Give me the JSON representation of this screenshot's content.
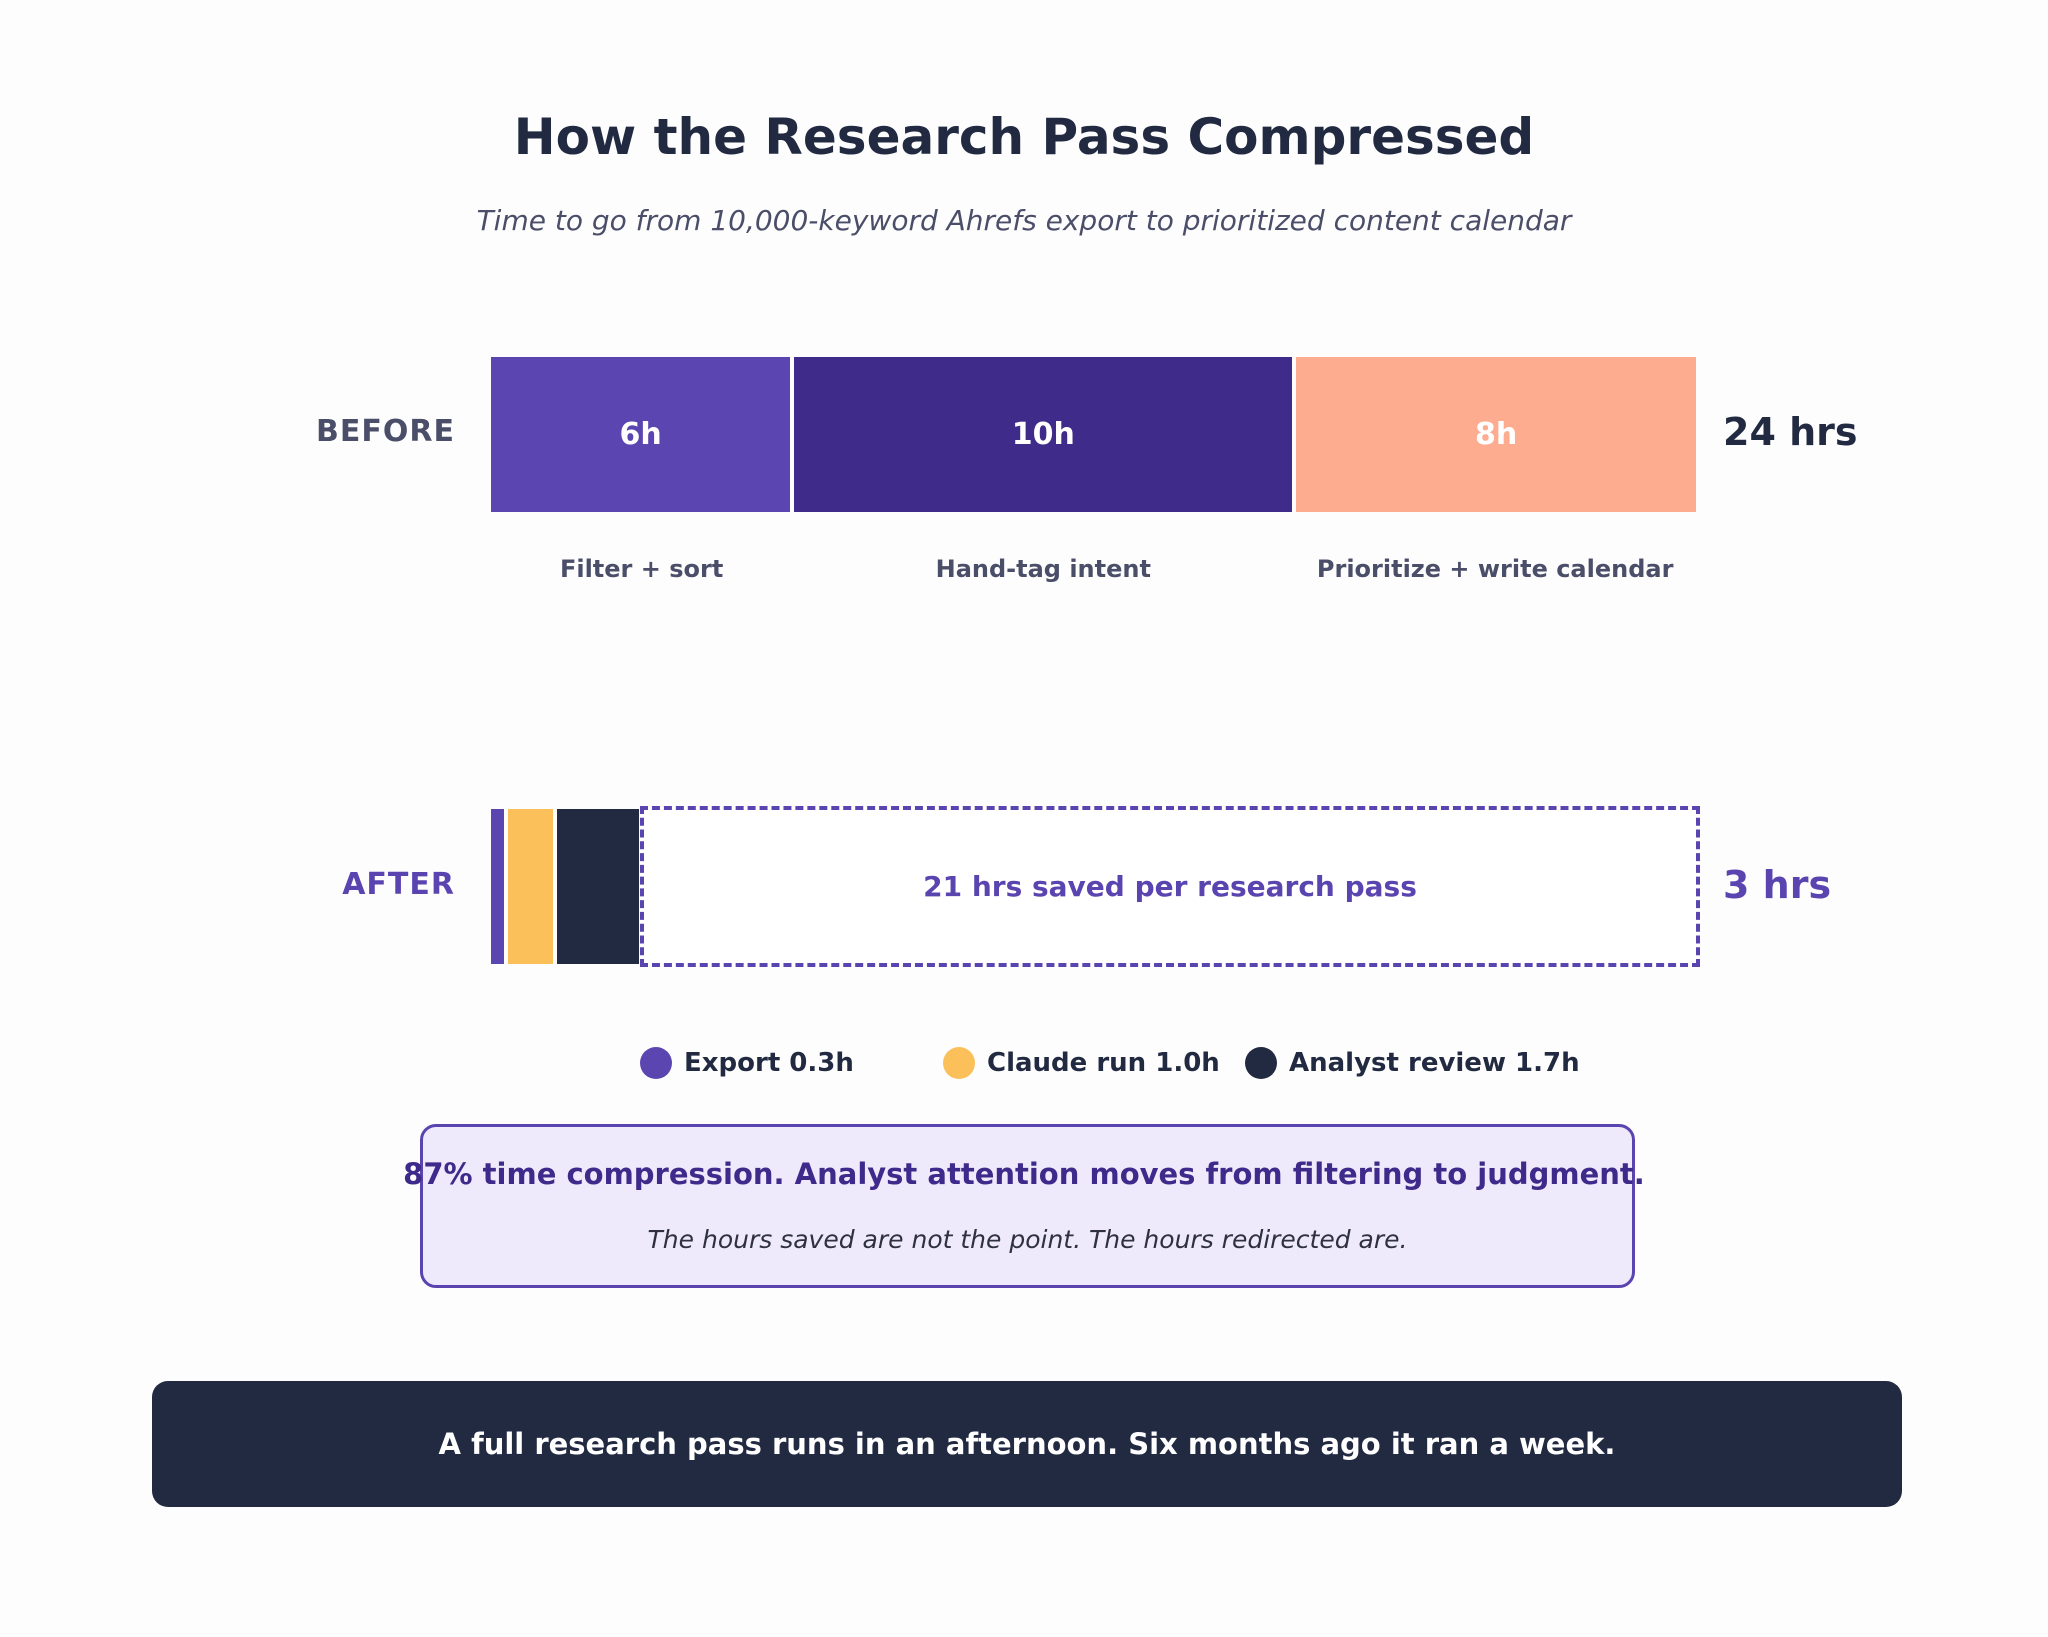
{
  "header": {
    "title": "How the Research Pass Compressed",
    "subtitle": "Time to go from 10,000-keyword Ahrefs export to prioritized content calendar"
  },
  "chart_data": {
    "type": "bar",
    "orientation": "horizontal-stacked",
    "rows": [
      {
        "label": "BEFORE",
        "total_label": "24 hrs",
        "total": 24,
        "segments": [
          {
            "value": 6,
            "value_label": "6h",
            "caption": "Filter + sort",
            "color": "#5b45b1"
          },
          {
            "value": 10,
            "value_label": "10h",
            "caption": "Hand-tag intent",
            "color": "#3f2b89"
          },
          {
            "value": 8,
            "value_label": "8h",
            "caption": "Prioritize + write calendar",
            "color": "#fdac8f"
          }
        ]
      },
      {
        "label": "AFTER",
        "total_label": "3 hrs",
        "total": 3,
        "segments": [
          {
            "value": 0.3,
            "legend": "Export 0.3h",
            "color": "#5b45b1"
          },
          {
            "value": 1.0,
            "legend": "Claude run 1.0h",
            "color": "#fcc05a"
          },
          {
            "value": 1.7,
            "legend": "Analyst review 1.7h",
            "color": "#222a42"
          }
        ],
        "saved": {
          "value": 21,
          "label": "21 hrs saved per research pass"
        }
      }
    ],
    "xlim": [
      0,
      24
    ],
    "grid": false
  },
  "callout": {
    "headline": "87% time compression. Analyst attention moves from filtering to judgment.",
    "subline": "The hours saved are not the point. The hours redirected are."
  },
  "banner": {
    "text": "A full research pass runs in an afternoon. Six months ago it ran a week."
  },
  "colors": {
    "before_label": "#4a4e69",
    "after_label": "#5a45b0",
    "before_total": "#222a42",
    "after_total": "#5a45b0"
  }
}
